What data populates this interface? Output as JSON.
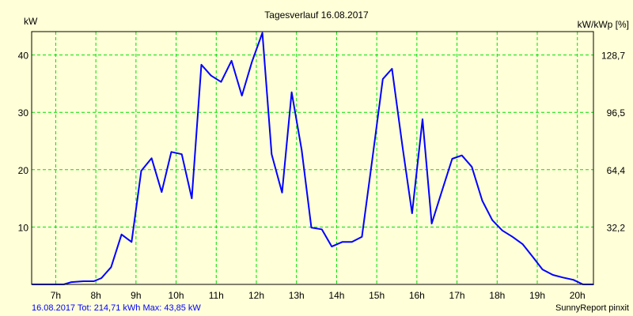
{
  "chart_data": {
    "type": "line",
    "title": "Tagesverlauf 16.08.2017",
    "ylabel": "kW",
    "ylabel_right": "kW/kWp [%]",
    "xlim": [
      6.4,
      20.4
    ],
    "ylim": [
      0,
      44
    ],
    "grid": true,
    "x_ticks": [
      7,
      8,
      9,
      10,
      11,
      12,
      13,
      14,
      15,
      16,
      17,
      18,
      19,
      20
    ],
    "x_tick_labels": [
      "7h",
      "8h",
      "9h",
      "10h",
      "11h",
      "12h",
      "13h",
      "14h",
      "15h",
      "16h",
      "17h",
      "18h",
      "19h",
      "20h"
    ],
    "y_ticks": [
      10,
      20,
      30,
      40
    ],
    "y_tick_labels": [
      "10",
      "20",
      "30",
      "40"
    ],
    "y_right_tick_labels": [
      "32,2",
      "64,4",
      "96,5",
      "128,7"
    ],
    "series": [
      {
        "name": "kW",
        "color": "#0000ff",
        "x": [
          6.41,
          7.2,
          7.39,
          7.69,
          7.95,
          8.14,
          8.38,
          8.64,
          8.89,
          9.13,
          9.39,
          9.64,
          9.88,
          10.14,
          10.39,
          10.63,
          10.87,
          11.12,
          11.38,
          11.64,
          11.89,
          12.15,
          12.38,
          12.64,
          12.88,
          13.13,
          13.37,
          13.63,
          13.88,
          14.14,
          14.38,
          14.63,
          14.89,
          15.15,
          15.38,
          15.64,
          15.88,
          16.14,
          16.37,
          16.63,
          16.88,
          17.12,
          17.37,
          17.63,
          17.88,
          18.13,
          18.38,
          18.64,
          18.89,
          19.13,
          19.39,
          19.64,
          19.9,
          20.14,
          20.41
        ],
        "values": [
          0,
          0,
          0.4,
          0.55,
          0.55,
          1.1,
          3.0,
          8.7,
          7.4,
          19.8,
          22.0,
          16.1,
          23.1,
          22.7,
          15.0,
          38.3,
          36.4,
          35.3,
          39.0,
          32.9,
          38.8,
          43.85,
          22.7,
          16.0,
          33.5,
          23.4,
          9.9,
          9.6,
          6.6,
          7.4,
          7.4,
          8.3,
          21.9,
          35.8,
          37.6,
          24.1,
          12.4,
          28.8,
          10.6,
          16.4,
          21.9,
          22.5,
          20.5,
          14.6,
          11.2,
          9.4,
          8.3,
          7.0,
          4.8,
          2.6,
          1.65,
          1.2,
          0.8,
          0,
          0
        ]
      }
    ]
  },
  "footer": {
    "summary": "16.08.2017 Tot: 214,71 kWh Max: 43,85 kW",
    "brand": "SunnyReport pinxit"
  },
  "colors": {
    "background": "#ffffd8",
    "grid": "#00e000",
    "line": "#0000ff"
  }
}
